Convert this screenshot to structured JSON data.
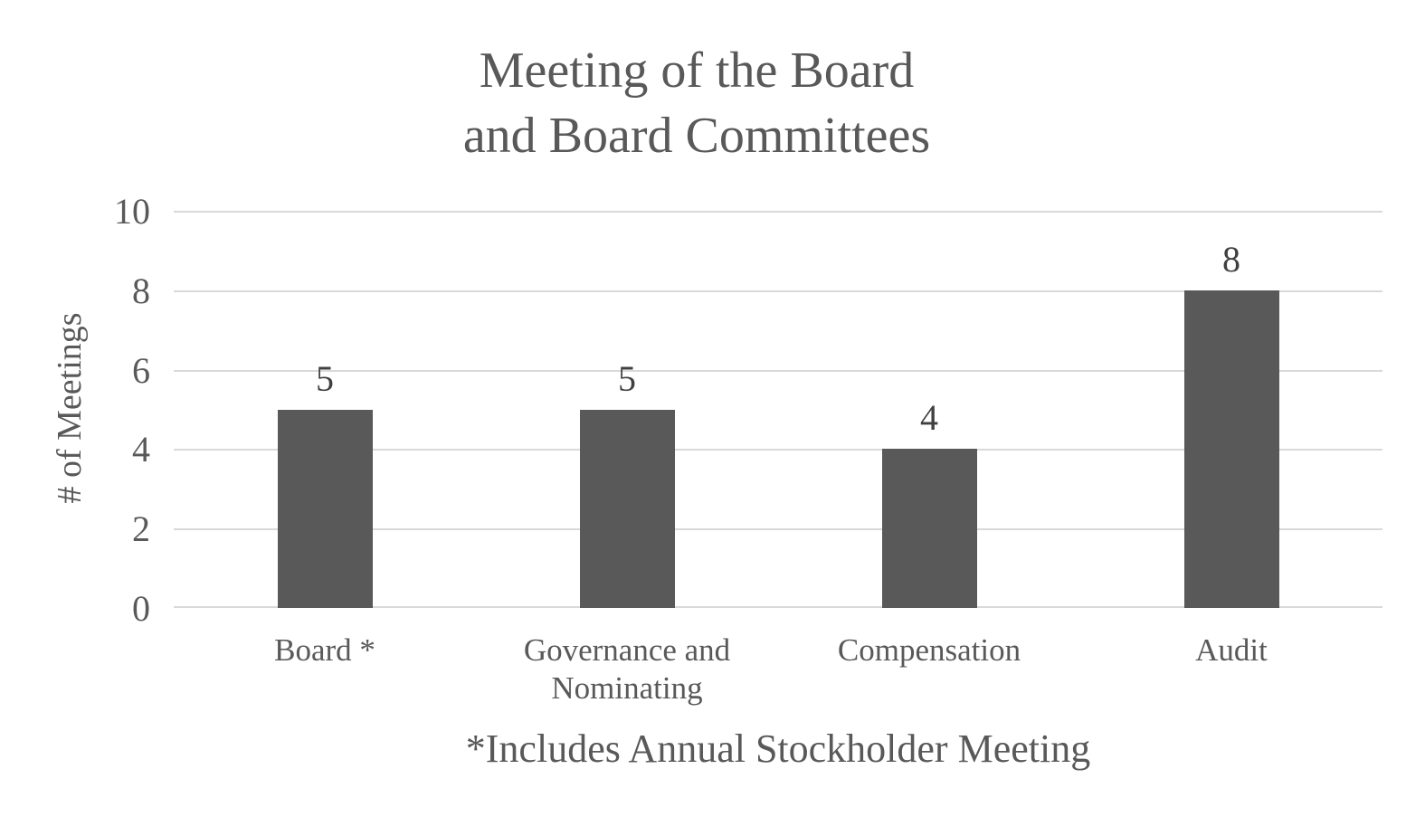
{
  "chart": {
    "title_line1": "Meeting of the Board",
    "title_line2": "and Board Committees",
    "ylabel": "# of Meetings",
    "footnote": "*Includes Annual Stockholder Meeting"
  },
  "chart_data": {
    "type": "bar",
    "title": "Meeting of the Board and Board Committees",
    "categories": [
      "Board *",
      "Governance and Nominating",
      "Compensation",
      "Audit"
    ],
    "values": [
      5,
      5,
      4,
      8
    ],
    "data_labels": [
      "5",
      "5",
      "4",
      "8"
    ],
    "xlabel": "",
    "ylabel": "# of Meetings",
    "ylim": [
      0,
      10
    ],
    "yticks": [
      0,
      2,
      4,
      6,
      8,
      10
    ],
    "grid": true,
    "legend": false,
    "footnote": "*Includes Annual Stockholder Meeting",
    "colors": {
      "bar": "#595959",
      "gridline": "#d9d9d9",
      "axis_text": "#595959",
      "data_label": "#404040",
      "title_text": "#595959",
      "background": "#ffffff"
    }
  }
}
